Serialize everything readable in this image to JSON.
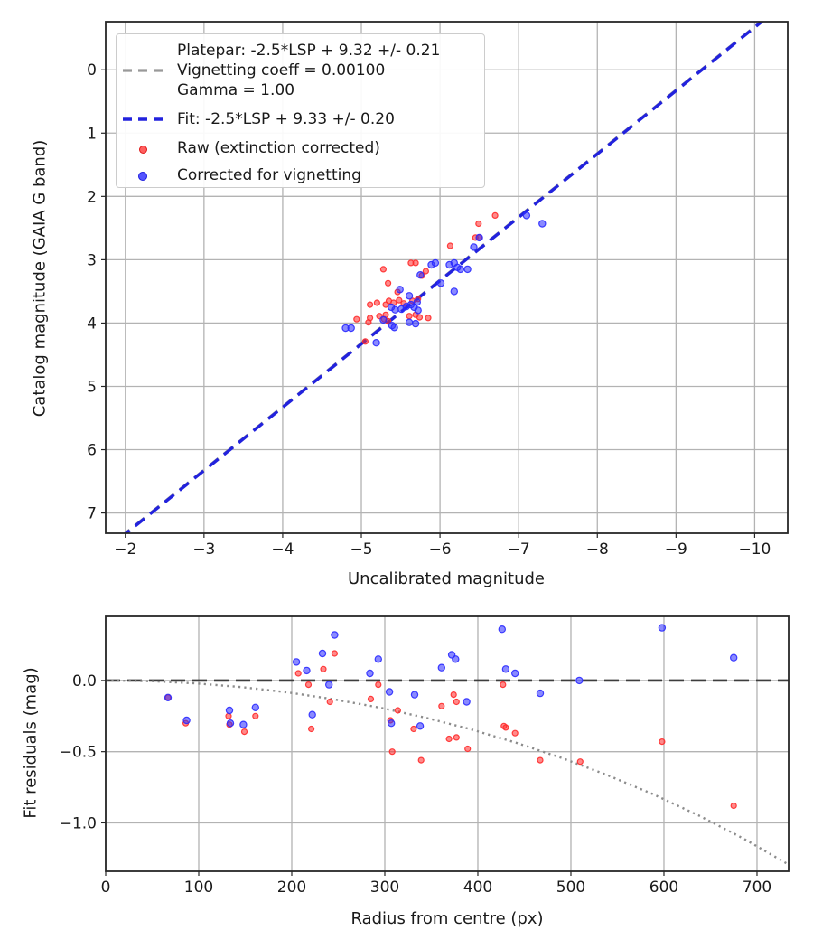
{
  "legend": {
    "platepar_lines": [
      "Platepar: -2.5*LSP + 9.32 +/- 0.21",
      "Vignetting coeff = 0.00100",
      "Gamma = 1.00"
    ],
    "fit_label": "Fit: -2.5*LSP + 9.33 +/- 0.20",
    "raw_label": "Raw (extinction corrected)",
    "corrected_label": "Corrected for vignetting"
  },
  "colors": {
    "raw": "#ff2a2a",
    "corrected": "#2a2aff",
    "fit_line": "#2222dd",
    "platepar_line": "#999999",
    "zero_line": "#3d3d3d",
    "vignetting_curve": "#8c8c8c",
    "grid": "#b3b3b3",
    "spine": "#262626",
    "text": "#1a1a1a"
  },
  "chart_data": [
    {
      "type": "scatter",
      "title": "",
      "xlabel": "Uncalibrated magnitude",
      "ylabel": "Catalog magnitude (GAIA G band)",
      "xlim": [
        -1.75,
        -10.42
      ],
      "ylim": [
        -0.76,
        7.32
      ],
      "x_axis_inverted": true,
      "y_axis_inverted": true,
      "grid": true,
      "legend_position": "upper left",
      "xticks": {
        "values": [
          -2,
          -3,
          -4,
          -5,
          -6,
          -7,
          -8,
          -9,
          -10
        ],
        "labels": [
          "−2",
          "−3",
          "−4",
          "−5",
          "−6",
          "−7",
          "−8",
          "−9",
          "−10"
        ]
      },
      "yticks": {
        "values": [
          0,
          1,
          2,
          3,
          4,
          5,
          6,
          7
        ],
        "labels": [
          "0",
          "1",
          "2",
          "3",
          "4",
          "5",
          "6",
          "7"
        ]
      },
      "ref_lines": [
        {
          "name": "platepar-line",
          "slope": 1,
          "intercept": 9.32,
          "style": "dashed",
          "color": "#999999",
          "width": 3.0
        },
        {
          "name": "fit-line",
          "slope": 1,
          "intercept": 9.33,
          "style": "dashed",
          "color": "#2222dd",
          "width": 3.4
        }
      ],
      "series": [
        {
          "name": "Raw (extinction corrected)",
          "color": "#ff2a2a",
          "marker_r": 3.0,
          "points": [
            [
              -4.94,
              3.94
            ],
            [
              -5.05,
              4.29
            ],
            [
              -5.09,
              3.99
            ],
            [
              -5.11,
              3.92
            ],
            [
              -5.11,
              3.71
            ],
            [
              -5.2,
              3.68
            ],
            [
              -5.23,
              3.89
            ],
            [
              -5.29,
              3.94
            ],
            [
              -5.31,
              3.71
            ],
            [
              -5.31,
              3.87
            ],
            [
              -5.34,
              3.37
            ],
            [
              -5.34,
              3.97
            ],
            [
              -5.35,
              3.65
            ],
            [
              -5.28,
              3.15
            ],
            [
              -5.41,
              3.68
            ],
            [
              -5.46,
              3.51
            ],
            [
              -5.48,
              3.64
            ],
            [
              -5.54,
              3.69
            ],
            [
              -5.61,
              3.89
            ],
            [
              -5.65,
              3.65
            ],
            [
              -5.69,
              3.87
            ],
            [
              -5.72,
              3.62
            ],
            [
              -5.74,
              3.91
            ],
            [
              -5.85,
              3.92
            ],
            [
              -5.63,
              3.05
            ],
            [
              -5.69,
              3.05
            ],
            [
              -5.77,
              3.25
            ],
            [
              -5.82,
              3.18
            ],
            [
              -6.13,
              2.78
            ],
            [
              -6.45,
              2.65
            ],
            [
              -6.5,
              2.65
            ],
            [
              -6.49,
              2.43
            ],
            [
              -6.7,
              2.3
            ]
          ]
        },
        {
          "name": "Corrected for vignetting",
          "color": "#2a2aff",
          "marker_r": 3.6,
          "points": [
            [
              -4.8,
              4.08
            ],
            [
              -4.87,
              4.08
            ],
            [
              -5.19,
              4.31
            ],
            [
              -5.28,
              3.95
            ],
            [
              -5.38,
              3.75
            ],
            [
              -5.39,
              4.04
            ],
            [
              -5.42,
              4.07
            ],
            [
              -5.43,
              3.79
            ],
            [
              -5.49,
              3.47
            ],
            [
              -5.51,
              3.78
            ],
            [
              -5.57,
              3.74
            ],
            [
              -5.61,
              3.57
            ],
            [
              -5.63,
              3.71
            ],
            [
              -5.67,
              3.75
            ],
            [
              -5.71,
              3.67
            ],
            [
              -5.72,
              3.8
            ],
            [
              -5.61,
              3.99
            ],
            [
              -5.69,
              4.01
            ],
            [
              -5.75,
              3.24
            ],
            [
              -5.89,
              3.08
            ],
            [
              -5.94,
              3.05
            ],
            [
              -6.01,
              3.37
            ],
            [
              -6.12,
              3.08
            ],
            [
              -6.18,
              3.05
            ],
            [
              -6.22,
              3.12
            ],
            [
              -6.26,
              3.15
            ],
            [
              -6.18,
              3.5
            ],
            [
              -6.35,
              3.15
            ],
            [
              -6.43,
              2.8
            ],
            [
              -6.5,
              2.65
            ],
            [
              -7.1,
              2.3
            ],
            [
              -7.3,
              2.43
            ]
          ]
        }
      ]
    },
    {
      "type": "scatter",
      "title": "",
      "xlabel": "Radius from centre (px)",
      "ylabel": "Fit residuals (mag)",
      "xlim": [
        0,
        734
      ],
      "ylim": [
        0.45,
        -1.34
      ],
      "grid": true,
      "xticks": {
        "values": [
          0,
          100,
          200,
          300,
          400,
          500,
          600,
          700
        ],
        "labels": [
          "0",
          "100",
          "200",
          "300",
          "400",
          "500",
          "600",
          "700"
        ]
      },
      "yticks": {
        "values": [
          0,
          -0.5,
          -1.0
        ],
        "labels": [
          "0.0",
          "−0.5",
          "−1.0"
        ]
      },
      "ref_lines": [
        {
          "name": "zero-residual-line",
          "slope": 0,
          "intercept": 0,
          "style": "dashed",
          "color": "#3d3d3d",
          "width": 2.6
        }
      ],
      "curves": [
        {
          "name": "vignetting-model",
          "style": "dotted",
          "color": "#8c8c8c",
          "width": 2.4,
          "points": [
            [
              0,
              0
            ],
            [
              49,
              -0.005
            ],
            [
              98,
              -0.021
            ],
            [
              147,
              -0.047
            ],
            [
              196,
              -0.084
            ],
            [
              245,
              -0.132
            ],
            [
              294,
              -0.19
            ],
            [
              343,
              -0.26
            ],
            [
              392,
              -0.342
            ],
            [
              441,
              -0.437
            ],
            [
              490,
              -0.544
            ],
            [
              539,
              -0.664
            ],
            [
              588,
              -0.798
            ],
            [
              637,
              -0.947
            ],
            [
              686,
              -1.112
            ],
            [
              735,
              -1.297
            ]
          ]
        }
      ],
      "series": [
        {
          "name": "Raw (extinction corrected)",
          "color": "#ff2a2a",
          "marker_r": 3.0,
          "points": [
            [
              67,
              -0.12
            ],
            [
              86,
              -0.3
            ],
            [
              132,
              -0.25
            ],
            [
              133,
              -0.31
            ],
            [
              149,
              -0.36
            ],
            [
              161,
              -0.25
            ],
            [
              207,
              0.05
            ],
            [
              218,
              -0.03
            ],
            [
              221,
              -0.34
            ],
            [
              234,
              0.08
            ],
            [
              241,
              -0.15
            ],
            [
              246,
              0.19
            ],
            [
              285,
              -0.13
            ],
            [
              293,
              -0.03
            ],
            [
              306,
              -0.28
            ],
            [
              308,
              -0.5
            ],
            [
              314,
              -0.21
            ],
            [
              331,
              -0.34
            ],
            [
              339,
              -0.56
            ],
            [
              361,
              -0.18
            ],
            [
              369,
              -0.41
            ],
            [
              374,
              -0.1
            ],
            [
              377,
              -0.15
            ],
            [
              377,
              -0.4
            ],
            [
              389,
              -0.48
            ],
            [
              427,
              -0.03
            ],
            [
              428,
              -0.32
            ],
            [
              430,
              -0.33
            ],
            [
              440,
              -0.37
            ],
            [
              467,
              -0.56
            ],
            [
              510,
              -0.57
            ],
            [
              598,
              -0.43
            ],
            [
              675,
              -0.88
            ]
          ]
        },
        {
          "name": "Corrected for vignetting",
          "color": "#2a2aff",
          "marker_r": 3.6,
          "points": [
            [
              67,
              -0.12
            ],
            [
              87,
              -0.28
            ],
            [
              133,
              -0.21
            ],
            [
              134,
              -0.3
            ],
            [
              148,
              -0.31
            ],
            [
              161,
              -0.19
            ],
            [
              205,
              0.13
            ],
            [
              216,
              0.07
            ],
            [
              222,
              -0.24
            ],
            [
              233,
              0.19
            ],
            [
              240,
              -0.03
            ],
            [
              246,
              0.32
            ],
            [
              284,
              0.05
            ],
            [
              293,
              0.15
            ],
            [
              305,
              -0.08
            ],
            [
              307,
              -0.3
            ],
            [
              332,
              -0.1
            ],
            [
              338,
              -0.32
            ],
            [
              361,
              0.09
            ],
            [
              372,
              0.18
            ],
            [
              376,
              0.15
            ],
            [
              388,
              -0.15
            ],
            [
              426,
              0.36
            ],
            [
              430,
              0.08
            ],
            [
              440,
              0.05
            ],
            [
              467,
              -0.09
            ],
            [
              509,
              0.0
            ],
            [
              598,
              0.37
            ],
            [
              675,
              0.16
            ]
          ]
        }
      ]
    }
  ]
}
